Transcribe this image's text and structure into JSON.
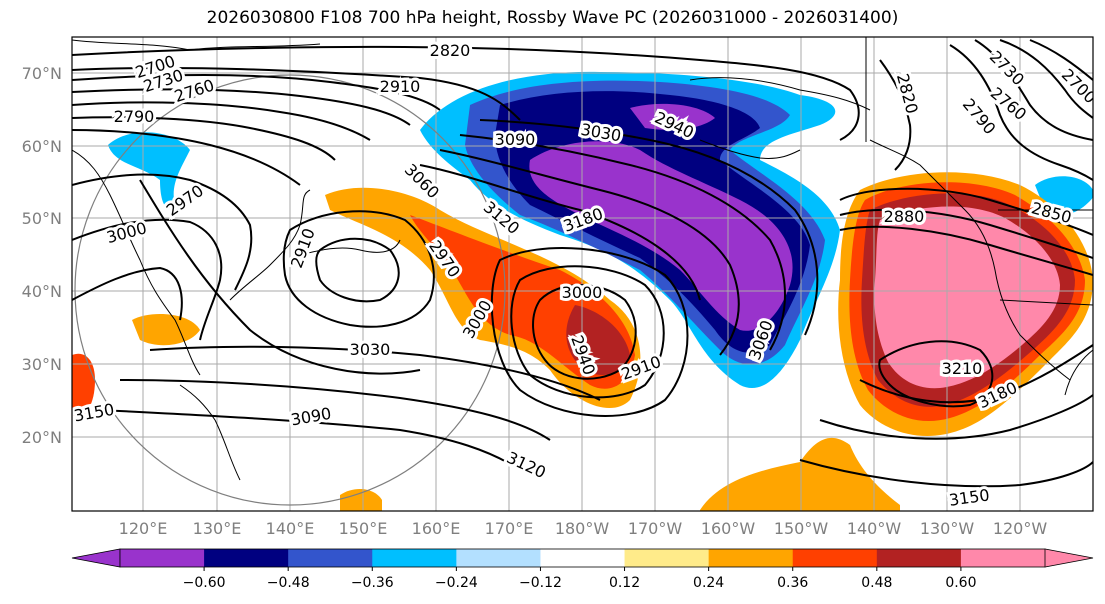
{
  "title": "2026030800 F108 700 hPa height, Rossby Wave PC (2026031000 - 2026031400)",
  "lat_labels": [
    "70°N",
    "60°N",
    "50°N",
    "40°N",
    "30°N",
    "20°N"
  ],
  "lon_labels": [
    "120°E",
    "130°E",
    "140°E",
    "150°E",
    "160°E",
    "170°E",
    "180°W",
    "170°W",
    "160°W",
    "150°W",
    "140°W",
    "130°W",
    "120°W"
  ],
  "contour_labels": [
    "2820",
    "2910",
    "2700",
    "2730",
    "2760",
    "2790",
    "2970",
    "3000",
    "3060",
    "3090",
    "3030",
    "2940",
    "2910",
    "3120",
    "3180",
    "2970",
    "3000",
    "2940",
    "2910",
    "3000",
    "3060",
    "2880",
    "2850",
    "3210",
    "3180",
    "3150",
    "3120",
    "3090",
    "3030",
    "3150",
    "2820",
    "2700",
    "2730",
    "2760",
    "2790"
  ],
  "colorbar": {
    "colors": [
      "#9933cc",
      "#000080",
      "#3355cc",
      "#00bfff",
      "#b3e0ff",
      "#ffffff",
      "#ffeb8a",
      "#ffa500",
      "#ff4000",
      "#b22222",
      "#ff88aa"
    ],
    "extend_low_color": "#9933cc",
    "extend_high_color": "#ff88aa",
    "ticks": [
      "−0.60",
      "−0.48",
      "−0.36",
      "−0.24",
      "−0.12",
      "0.12",
      "0.24",
      "0.36",
      "0.48",
      "0.60"
    ]
  },
  "colors": {
    "grid": "#aaaaaa",
    "coast": "#000000",
    "contour": "#000000"
  }
}
